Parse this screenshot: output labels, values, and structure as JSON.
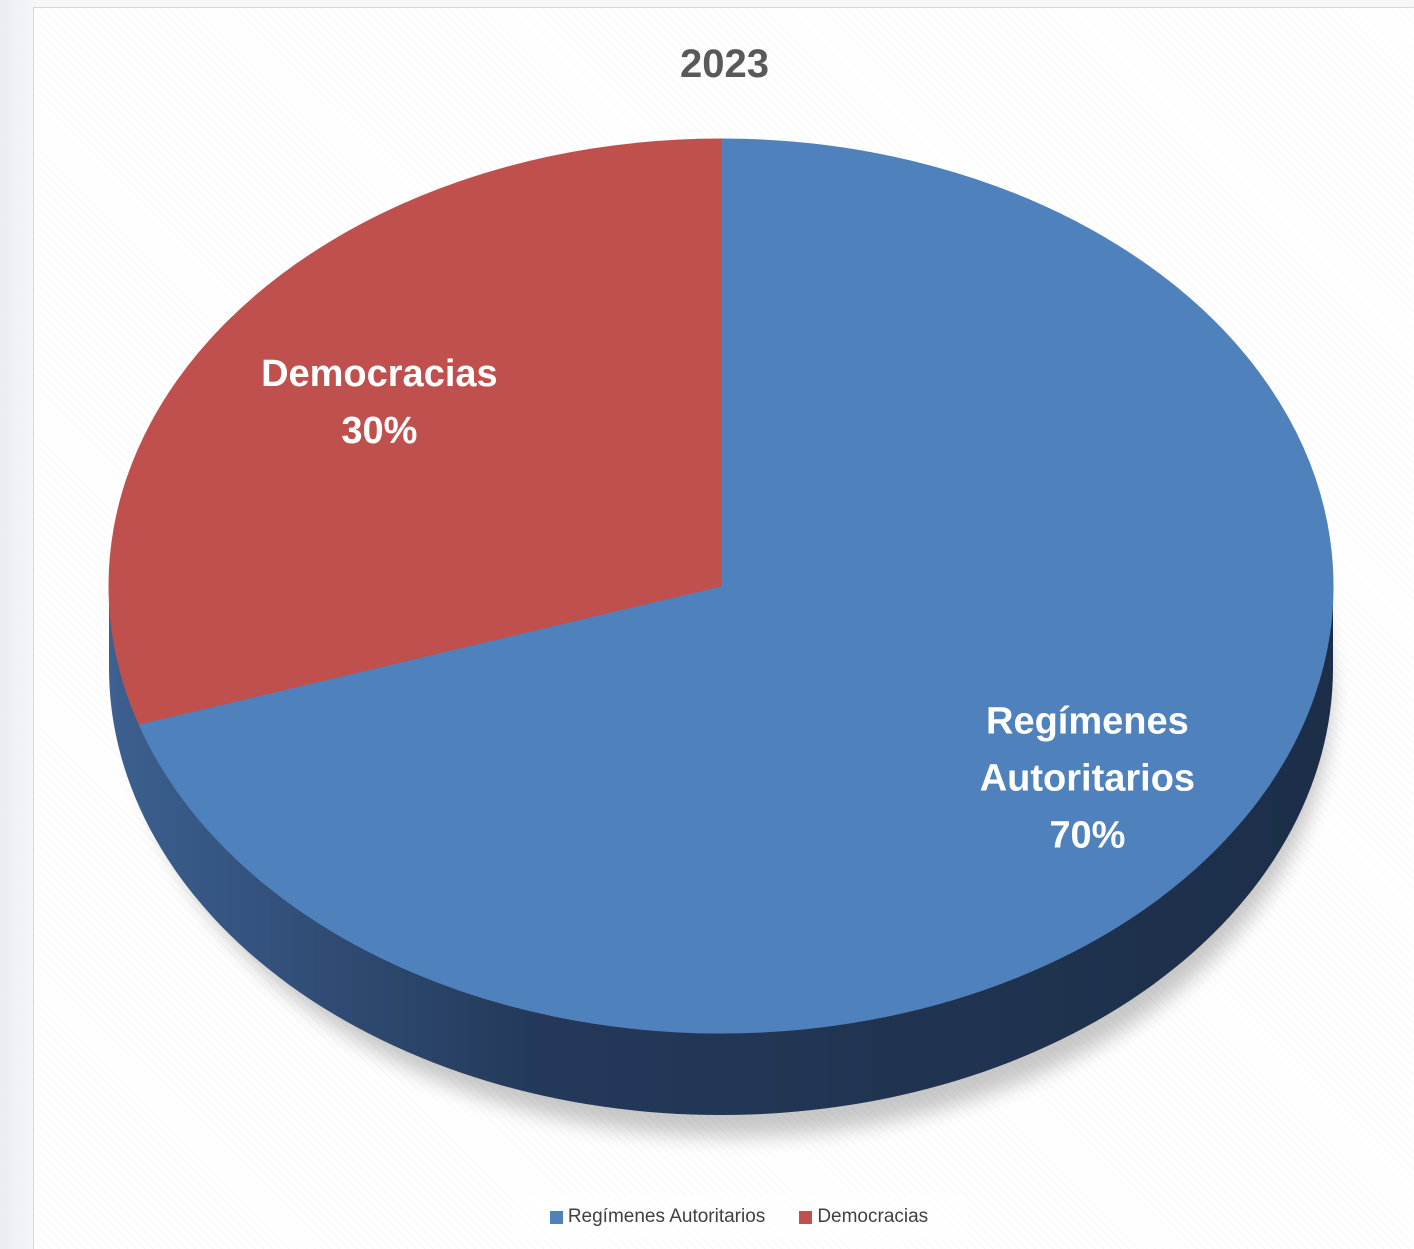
{
  "chart_data": {
    "type": "pie",
    "title": "2023",
    "slices": [
      {
        "label": "Regímenes Autoritarios",
        "value": 70,
        "value_label": "70%",
        "color": "#4f81bd",
        "side_color": "#1f3350"
      },
      {
        "label": "Democracias",
        "value": 30,
        "value_label": "30%",
        "color": "#c0504d",
        "side_color": "#6e2624"
      }
    ],
    "start_angle_deg": 0,
    "direction": "clockwise",
    "style": "3d-tilted",
    "legend_position": "bottom"
  }
}
